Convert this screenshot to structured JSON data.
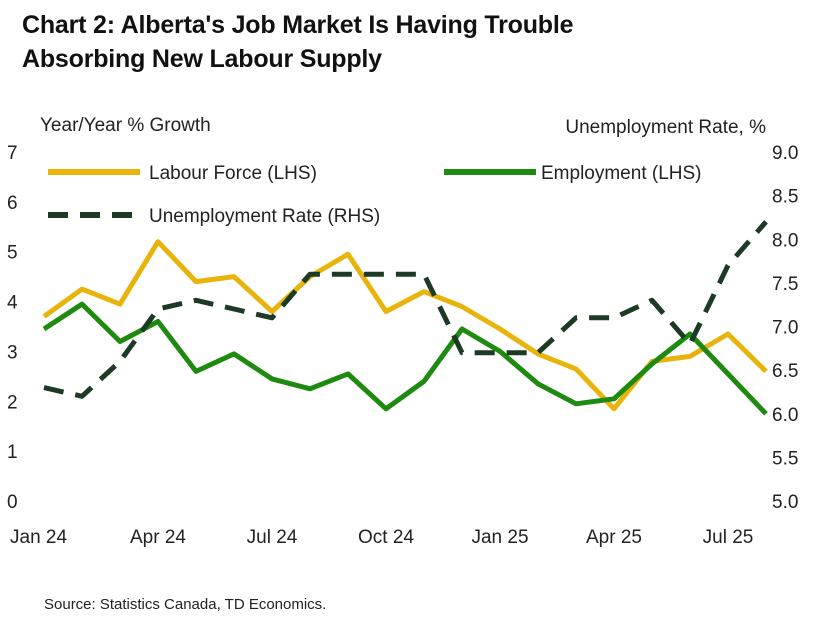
{
  "title_line1": "Chart 2: Alberta's Job Market Is Having Trouble",
  "title_line2": "Absorbing New Labour Supply",
  "source": "Source: Statistics Canada, TD Economics.",
  "colors": {
    "labour_force": "#E8B40C",
    "employment": "#1E8A10",
    "unemployment_rate": "#1C3A24"
  },
  "chart_data": {
    "type": "line",
    "title": "Chart 2: Alberta's Job Market Is Having Trouble Absorbing New Labour Supply",
    "ylabel_left": "Year/Year % Growth",
    "ylabel_right": "Unemployment Rate, %",
    "ylim_left": [
      0,
      7
    ],
    "ylim_right": [
      5.0,
      9.0
    ],
    "yticks_left": [
      "0",
      "1",
      "2",
      "3",
      "4",
      "5",
      "6",
      "7"
    ],
    "yticks_right": [
      "5.0",
      "5.5",
      "6.0",
      "6.5",
      "7.0",
      "7.5",
      "8.0",
      "8.5",
      "9.0"
    ],
    "x": [
      "Jan 24",
      "Feb 24",
      "Mar 24",
      "Apr 24",
      "May 24",
      "Jun 24",
      "Jul 24",
      "Aug 24",
      "Sep 24",
      "Oct 24",
      "Nov 24",
      "Dec 24",
      "Jan 25",
      "Feb 25",
      "Mar 25",
      "Apr 25",
      "May 25",
      "Jun 25",
      "Jul 25",
      "Aug 25"
    ],
    "xtick_labels": [
      "Jan 24",
      "Apr 24",
      "Jul 24",
      "Oct 24",
      "Jan 25",
      "Apr 25",
      "Jul 25"
    ],
    "legend_position": "top",
    "series": [
      {
        "name": "Labour Force (LHS)",
        "axis": "left",
        "style": "solid",
        "values": [
          3.7,
          4.25,
          3.95,
          5.2,
          4.4,
          4.5,
          3.8,
          4.5,
          4.95,
          3.8,
          4.2,
          3.9,
          3.45,
          2.95,
          2.65,
          1.85,
          2.8,
          2.9,
          3.35,
          2.6
        ]
      },
      {
        "name": "Employment (LHS)",
        "axis": "left",
        "style": "solid",
        "values": [
          3.45,
          3.95,
          3.2,
          3.6,
          2.6,
          2.95,
          2.45,
          2.25,
          2.55,
          1.85,
          2.4,
          3.45,
          3.0,
          2.35,
          1.95,
          2.05,
          2.75,
          3.35,
          2.55,
          1.75
        ]
      },
      {
        "name": "Unemployment Rate (RHS)",
        "axis": "right",
        "style": "dashed",
        "values": [
          6.3,
          6.2,
          6.6,
          7.2,
          7.3,
          7.2,
          7.1,
          7.6,
          7.6,
          7.6,
          7.6,
          6.7,
          6.7,
          6.7,
          7.1,
          7.1,
          7.3,
          6.8,
          7.7,
          8.2
        ]
      }
    ]
  }
}
